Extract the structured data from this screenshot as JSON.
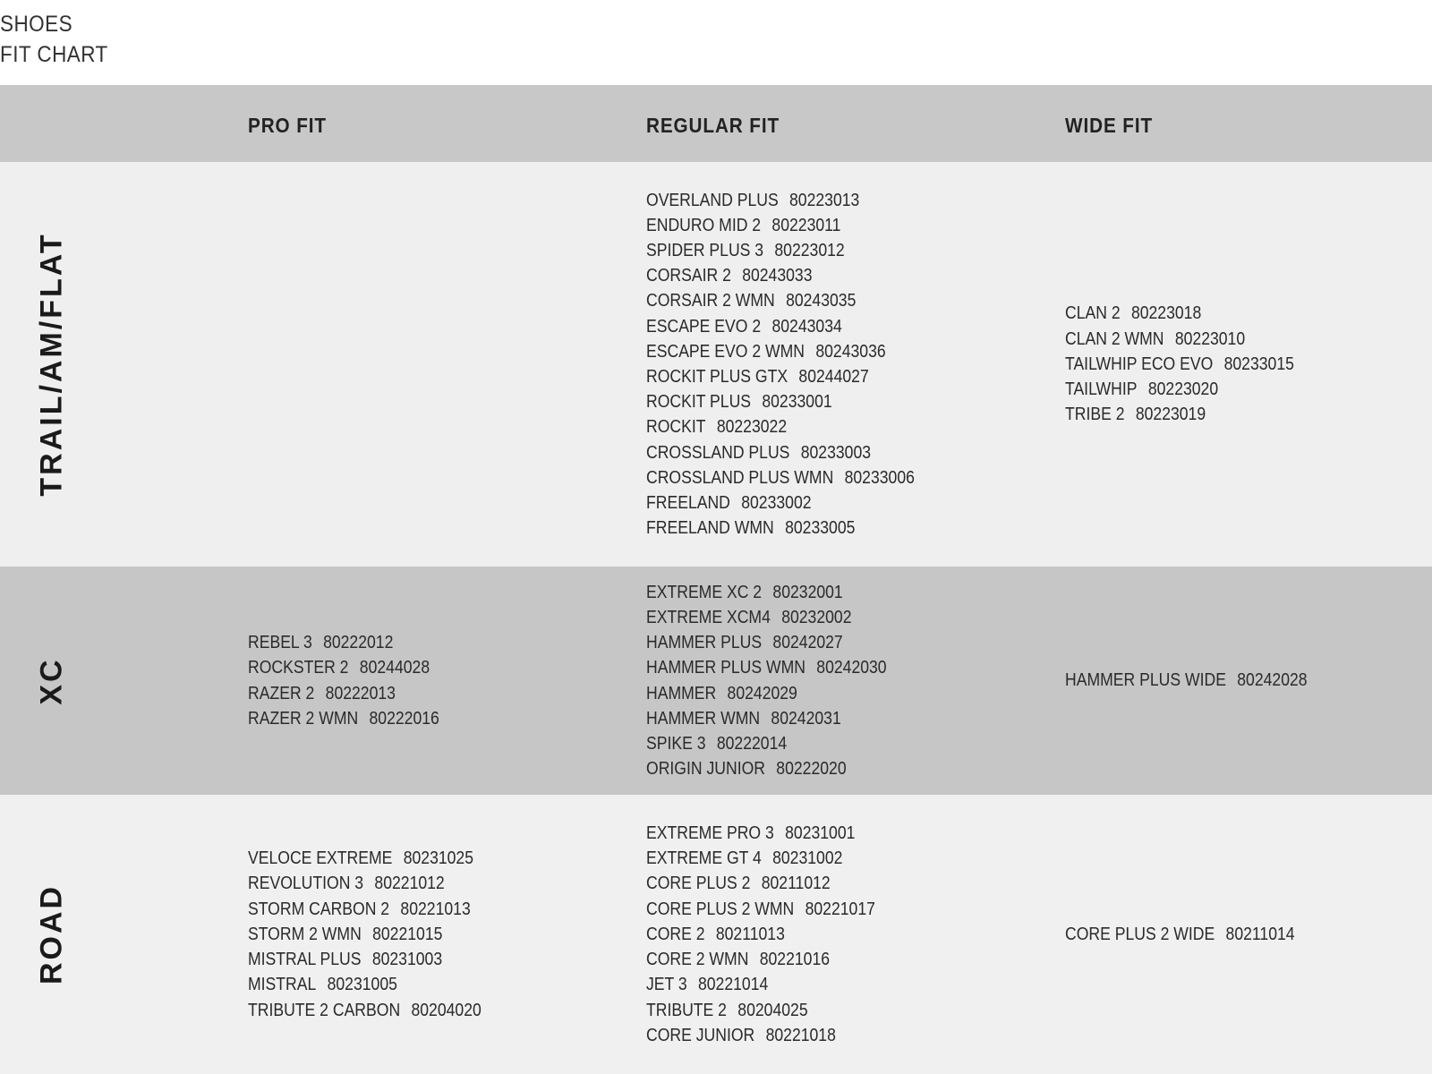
{
  "title": {
    "line1": "SHOES",
    "line2": "FIT CHART"
  },
  "columns": [
    "PRO FIT",
    "REGULAR FIT",
    "WIDE FIT"
  ],
  "colors": {
    "header_bg": "#c8c8c8",
    "light_row": "#efefef",
    "dark_row": "#c6c6c6",
    "text": "#222222"
  },
  "rows": [
    {
      "label": "TRAIL/AM/FLAT",
      "pro_fit": [],
      "regular_fit": [
        {
          "name": "OVERLAND PLUS",
          "code": "80223013"
        },
        {
          "name": "ENDURO MID 2",
          "code": "80223011"
        },
        {
          "name": "SPIDER PLUS 3",
          "code": "80223012"
        },
        {
          "name": "CORSAIR 2",
          "code": "80243033"
        },
        {
          "name": "CORSAIR 2 WMN",
          "code": "80243035"
        },
        {
          "name": "ESCAPE EVO 2",
          "code": "80243034"
        },
        {
          "name": "ESCAPE EVO 2 WMN",
          "code": "80243036"
        },
        {
          "name": "ROCKIT PLUS GTX",
          "code": "80244027"
        },
        {
          "name": "ROCKIT PLUS",
          "code": "80233001"
        },
        {
          "name": "ROCKIT",
          "code": "80223022"
        },
        {
          "name": "CROSSLAND PLUS",
          "code": "80233003"
        },
        {
          "name": "CROSSLAND PLUS WMN",
          "code": "80233006"
        },
        {
          "name": "FREELAND",
          "code": "80233002"
        },
        {
          "name": "FREELAND WMN",
          "code": "80233005"
        }
      ],
      "wide_fit": [
        {
          "name": "CLAN 2",
          "code": "80223018"
        },
        {
          "name": "CLAN 2 WMN",
          "code": "80223010"
        },
        {
          "name": "TAILWHIP ECO EVO",
          "code": "80233015"
        },
        {
          "name": "TAILWHIP",
          "code": "80223020"
        },
        {
          "name": "TRIBE 2",
          "code": "80223019"
        }
      ]
    },
    {
      "label": "XC",
      "pro_fit": [
        {
          "name": "REBEL 3",
          "code": "80222012"
        },
        {
          "name": "ROCKSTER 2",
          "code": "80244028"
        },
        {
          "name": "RAZER 2",
          "code": "80222013"
        },
        {
          "name": "RAZER 2 WMN",
          "code": "80222016"
        }
      ],
      "regular_fit": [
        {
          "name": "EXTREME XC 2",
          "code": "80232001"
        },
        {
          "name": "EXTREME XCM4",
          "code": "80232002"
        },
        {
          "name": "HAMMER PLUS",
          "code": "80242027"
        },
        {
          "name": "HAMMER PLUS WMN",
          "code": "80242030"
        },
        {
          "name": "HAMMER",
          "code": "80242029"
        },
        {
          "name": "HAMMER WMN",
          "code": "80242031"
        },
        {
          "name": "SPIKE 3",
          "code": "80222014"
        },
        {
          "name": "ORIGIN JUNIOR",
          "code": "80222020"
        }
      ],
      "wide_fit": [
        {
          "name": "HAMMER PLUS WIDE",
          "code": "80242028"
        }
      ]
    },
    {
      "label": "ROAD",
      "pro_fit": [
        {
          "name": "VELOCE EXTREME",
          "code": "80231025"
        },
        {
          "name": "REVOLUTION 3",
          "code": "80221012"
        },
        {
          "name": "STORM CARBON 2",
          "code": "80221013"
        },
        {
          "name": "STORM 2 WMN",
          "code": "80221015"
        },
        {
          "name": "MISTRAL PLUS",
          "code": "80231003"
        },
        {
          "name": "MISTRAL",
          "code": "80231005"
        },
        {
          "name": "TRIBUTE 2 CARBON",
          "code": "80204020"
        }
      ],
      "regular_fit": [
        {
          "name": "EXTREME PRO 3",
          "code": "80231001"
        },
        {
          "name": "EXTREME GT 4",
          "code": "80231002"
        },
        {
          "name": "CORE PLUS 2",
          "code": "80211012"
        },
        {
          "name": "CORE PLUS 2 WMN",
          "code": "80221017"
        },
        {
          "name": "CORE 2",
          "code": "80211013"
        },
        {
          "name": "CORE 2 WMN",
          "code": "80221016"
        },
        {
          "name": "JET 3",
          "code": "80221014"
        },
        {
          "name": "TRIBUTE 2",
          "code": "80204025"
        },
        {
          "name": "CORE JUNIOR",
          "code": "80221018"
        }
      ],
      "wide_fit": [
        {
          "name": "CORE PLUS 2 WIDE",
          "code": "80211014"
        }
      ]
    }
  ]
}
